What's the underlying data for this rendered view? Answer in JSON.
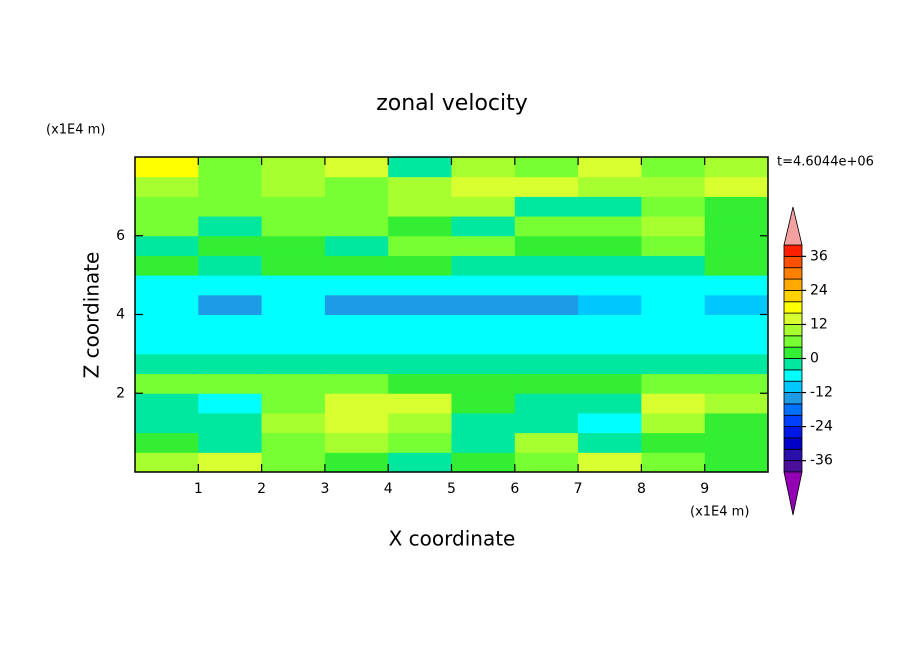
{
  "chart_data": {
    "type": "contour",
    "title": "zonal velocity",
    "x_label": "X coordinate",
    "y_label": "Z coordinate",
    "x_unit": "(x1E4 m)",
    "y_unit": "(x1E4 m)",
    "time_label": "t=4.6044e+06",
    "xlim": [
      0,
      10
    ],
    "ylim": [
      0,
      8
    ],
    "xticks": [
      1,
      2,
      3,
      4,
      5,
      6,
      7,
      8,
      9
    ],
    "yticks": [
      2,
      4,
      6
    ],
    "x": [
      0.5,
      1.5,
      2.5,
      3.5,
      4.5,
      5.5,
      6.5,
      7.5,
      8.5,
      9.5
    ],
    "y": [
      0.25,
      0.75,
      1.25,
      1.75,
      2.25,
      2.75,
      3.25,
      3.75,
      4.25,
      4.75,
      5.25,
      5.75,
      6.25,
      6.75,
      7.25,
      7.75
    ],
    "z": [
      [
        10,
        14,
        6,
        2,
        -2,
        2,
        6,
        12,
        4,
        2
      ],
      [
        0,
        -2,
        6,
        10,
        4,
        -2,
        8,
        -2,
        2,
        0
      ],
      [
        -2,
        -4,
        8,
        14,
        8,
        -2,
        -2,
        -6,
        8,
        2
      ],
      [
        -2,
        -6,
        4,
        14,
        14,
        0,
        -2,
        -4,
        14,
        8
      ],
      [
        4,
        4,
        4,
        4,
        2,
        2,
        2,
        2,
        4,
        4
      ],
      [
        -2,
        -2,
        -2,
        -2,
        -2,
        -2,
        -2,
        -2,
        -2,
        -2
      ],
      [
        -6,
        -6,
        -6,
        -6,
        -6,
        -6,
        -6,
        -6,
        -6,
        -6
      ],
      [
        -8,
        -8,
        -8,
        -8,
        -8,
        -8,
        -8,
        -8,
        -8,
        -8
      ],
      [
        -8,
        -14,
        -8,
        -14,
        -14,
        -14,
        -14,
        -10,
        -8,
        -12
      ],
      [
        -6,
        -6,
        -6,
        -6,
        -6,
        -6,
        -6,
        -6,
        -6,
        -6
      ],
      [
        2,
        -2,
        2,
        2,
        2,
        -2,
        -2,
        -2,
        -2,
        2
      ],
      [
        -2,
        2,
        2,
        -2,
        4,
        4,
        2,
        2,
        4,
        2
      ],
      [
        4,
        -2,
        4,
        4,
        2,
        -2,
        4,
        4,
        8,
        2
      ],
      [
        4,
        4,
        4,
        6,
        8,
        10,
        -2,
        -2,
        4,
        2
      ],
      [
        10,
        6,
        8,
        4,
        8,
        12,
        12,
        10,
        8,
        14
      ],
      [
        16,
        4,
        8,
        14,
        -2,
        10,
        4,
        12,
        4,
        8
      ]
    ],
    "levels": [
      -40,
      -36,
      -32,
      -28,
      -24,
      -20,
      -16,
      -12,
      -8,
      -4,
      0,
      4,
      8,
      12,
      16,
      20,
      24,
      28,
      32,
      36,
      40
    ],
    "colors": [
      "#9400b4",
      "#4b0f9a",
      "#2a0fa8",
      "#0000c8",
      "#0018e6",
      "#0040ff",
      "#0070ff",
      "#1e9be6",
      "#00c8ff",
      "#00ffff",
      "#00e8a0",
      "#33ee33",
      "#77ff33",
      "#a8ff30",
      "#d8ff30",
      "#ffff00",
      "#ffd200",
      "#ffaa00",
      "#ff8000",
      "#ff5000",
      "#ff2000",
      "#f5a0a0"
    ],
    "cbar_ticks": [
      36,
      24,
      12,
      0,
      -12,
      -24,
      -36
    ]
  }
}
